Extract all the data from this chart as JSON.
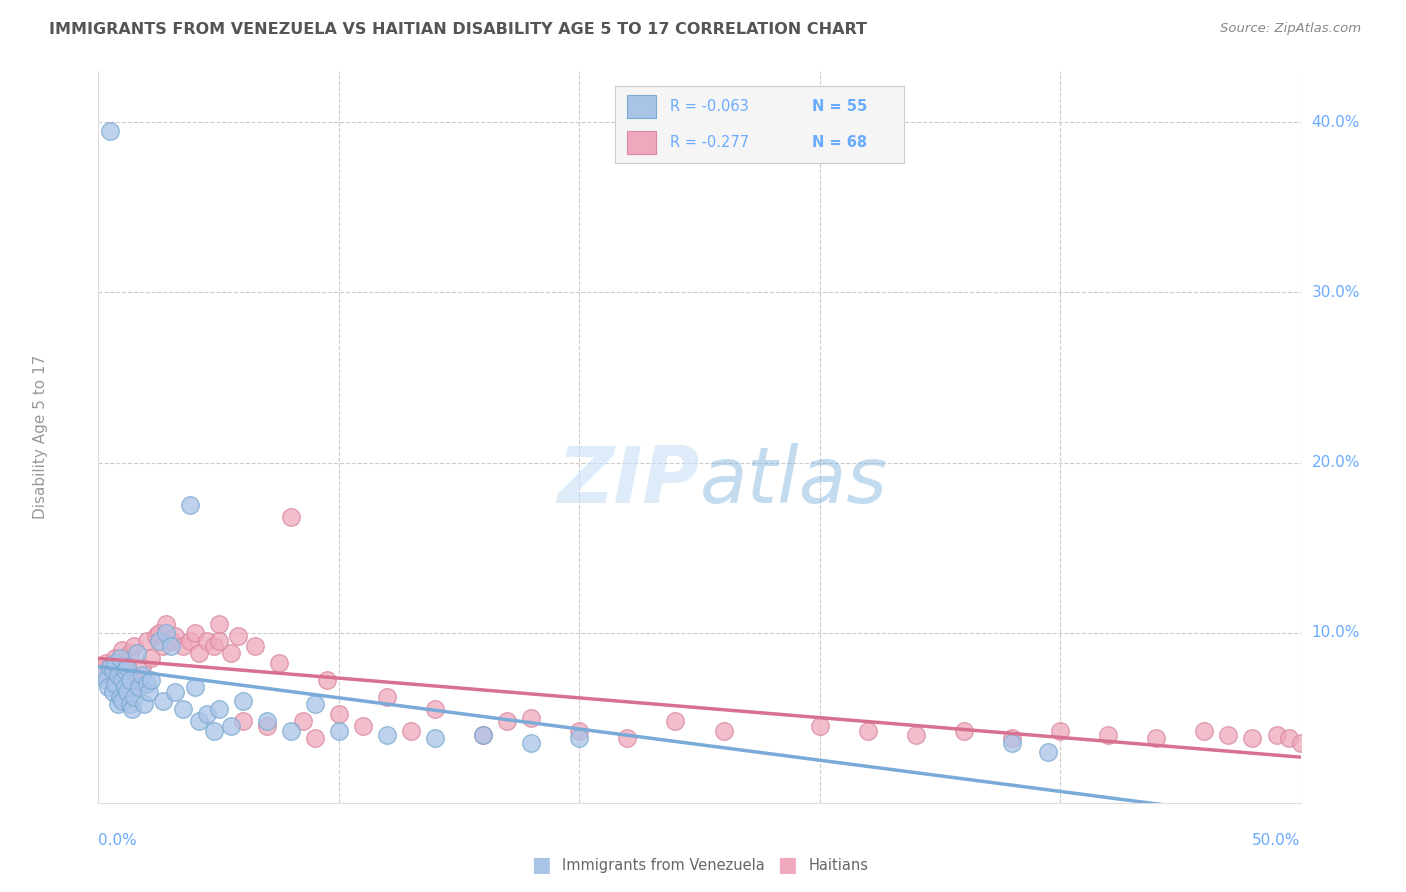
{
  "title": "IMMIGRANTS FROM VENEZUELA VS HAITIAN DISABILITY AGE 5 TO 17 CORRELATION CHART",
  "source": "Source: ZipAtlas.com",
  "ylabel": "Disability Age 5 to 17",
  "legend_label1": "Immigrants from Venezuela",
  "legend_label2": "Haitians",
  "legend_r1": "-0.063",
  "legend_n1": "55",
  "legend_r2": "-0.277",
  "legend_n2": "68",
  "color_blue": "#aac4e8",
  "color_pink": "#f0a8bc",
  "color_blue_edge": "#7aaad0",
  "color_pink_edge": "#d888a0",
  "regression_color_blue": "#7aaad8",
  "regression_color_pink": "#d87090",
  "axis_label_color": "#6aabff",
  "background_color": "#ffffff",
  "grid_color": "#cccccc",
  "xlim": [
    0.0,
    0.5
  ],
  "ylim": [
    0.0,
    0.43
  ],
  "venezuela_x": [
    0.002,
    0.003,
    0.004,
    0.005,
    0.005,
    0.006,
    0.006,
    0.007,
    0.007,
    0.008,
    0.008,
    0.009,
    0.009,
    0.01,
    0.01,
    0.011,
    0.011,
    0.012,
    0.012,
    0.013,
    0.013,
    0.014,
    0.015,
    0.016,
    0.017,
    0.018,
    0.019,
    0.02,
    0.021,
    0.022,
    0.025,
    0.027,
    0.028,
    0.03,
    0.032,
    0.035,
    0.038,
    0.04,
    0.042,
    0.045,
    0.05,
    0.055,
    0.06,
    0.07,
    0.08,
    0.09,
    0.1,
    0.12,
    0.14,
    0.16,
    0.18,
    0.2,
    0.38,
    0.395,
    0.048
  ],
  "venezuela_y": [
    0.076,
    0.072,
    0.068,
    0.395,
    0.08,
    0.065,
    0.078,
    0.07,
    0.082,
    0.058,
    0.075,
    0.085,
    0.062,
    0.072,
    0.06,
    0.078,
    0.068,
    0.065,
    0.08,
    0.058,
    0.072,
    0.055,
    0.062,
    0.088,
    0.068,
    0.075,
    0.058,
    0.07,
    0.065,
    0.072,
    0.095,
    0.06,
    0.1,
    0.092,
    0.065,
    0.055,
    0.175,
    0.068,
    0.048,
    0.052,
    0.055,
    0.045,
    0.06,
    0.048,
    0.042,
    0.058,
    0.042,
    0.04,
    0.038,
    0.04,
    0.035,
    0.038,
    0.035,
    0.03,
    0.042
  ],
  "haiti_x": [
    0.002,
    0.003,
    0.004,
    0.005,
    0.006,
    0.007,
    0.008,
    0.009,
    0.01,
    0.011,
    0.012,
    0.013,
    0.014,
    0.015,
    0.016,
    0.018,
    0.02,
    0.022,
    0.024,
    0.025,
    0.027,
    0.028,
    0.03,
    0.032,
    0.035,
    0.038,
    0.04,
    0.042,
    0.045,
    0.048,
    0.05,
    0.055,
    0.058,
    0.06,
    0.065,
    0.07,
    0.075,
    0.08,
    0.085,
    0.09,
    0.095,
    0.1,
    0.11,
    0.12,
    0.13,
    0.14,
    0.16,
    0.18,
    0.2,
    0.22,
    0.24,
    0.26,
    0.3,
    0.32,
    0.34,
    0.36,
    0.38,
    0.4,
    0.42,
    0.44,
    0.46,
    0.47,
    0.48,
    0.49,
    0.495,
    0.5,
    0.17,
    0.05
  ],
  "haiti_y": [
    0.078,
    0.082,
    0.075,
    0.08,
    0.072,
    0.085,
    0.068,
    0.078,
    0.09,
    0.065,
    0.082,
    0.088,
    0.075,
    0.092,
    0.068,
    0.08,
    0.095,
    0.085,
    0.098,
    0.1,
    0.092,
    0.105,
    0.095,
    0.098,
    0.092,
    0.095,
    0.1,
    0.088,
    0.095,
    0.092,
    0.105,
    0.088,
    0.098,
    0.048,
    0.092,
    0.045,
    0.082,
    0.168,
    0.048,
    0.038,
    0.072,
    0.052,
    0.045,
    0.062,
    0.042,
    0.055,
    0.04,
    0.05,
    0.042,
    0.038,
    0.048,
    0.042,
    0.045,
    0.042,
    0.04,
    0.042,
    0.038,
    0.042,
    0.04,
    0.038,
    0.042,
    0.04,
    0.038,
    0.04,
    0.038,
    0.035,
    0.048,
    0.095
  ]
}
